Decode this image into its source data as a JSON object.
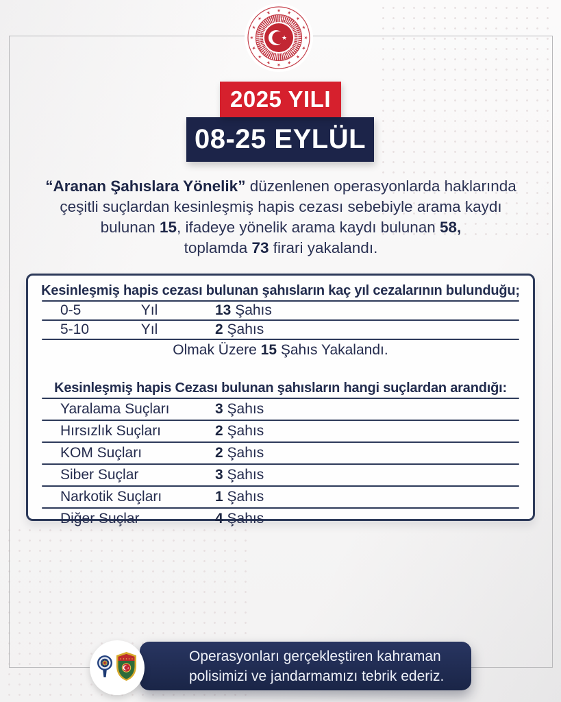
{
  "seal": {
    "title": "TÜRKİYE CUMHURİYETİ BİNGÖL VALİLİĞİ"
  },
  "banners": {
    "year": "2025 YILI",
    "date_range": "08-25 EYLÜL"
  },
  "intro": {
    "segments": [
      {
        "text": "“Aranan Şahıslara Yönelik”",
        "bold": true
      },
      {
        "text": " düzenlenen operasyonlarda haklarında",
        "bold": false
      },
      {
        "br": true
      },
      {
        "text": "çeşitli suçlardan kesinleşmiş hapis cezası sebebiyle arama kaydı",
        "bold": false
      },
      {
        "br": true
      },
      {
        "text": "bulunan ",
        "bold": false
      },
      {
        "text": "15",
        "bold": true
      },
      {
        "text": ", ifadeye yönelik arama kaydı bulunan ",
        "bold": false
      },
      {
        "text": "58,",
        "bold": true
      },
      {
        "br": true
      },
      {
        "text": "toplamda ",
        "bold": false
      },
      {
        "text": "73",
        "bold": true
      },
      {
        "text": " firari yakalandı.",
        "bold": false
      }
    ]
  },
  "sentence_table": {
    "title": "Kesinleşmiş hapis cezası bulunan şahısların kaç yıl cezalarının bulunduğu;",
    "rows": [
      {
        "range": "0-5",
        "unit": "Yıl",
        "count": "13",
        "count_unit": "Şahıs"
      },
      {
        "range": "5-10",
        "unit": "Yıl",
        "count": "2",
        "count_unit": "Şahıs"
      }
    ],
    "summary_segments": [
      {
        "text": "Olmak Üzere ",
        "bold": false
      },
      {
        "text": "15",
        "bold": true
      },
      {
        "text": " Şahıs Yakalandı.",
        "bold": false
      }
    ]
  },
  "crime_table": {
    "title": "Kesinleşmiş hapis Cezası bulunan şahısların hangi suçlardan arandığı:",
    "rows": [
      {
        "label": "Yaralama Suçları",
        "count": "3",
        "count_unit": "Şahıs"
      },
      {
        "label": "Hırsızlık Suçları",
        "count": "2",
        "count_unit": "Şahıs"
      },
      {
        "label": "KOM Suçları",
        "count": "2",
        "count_unit": "Şahıs"
      },
      {
        "label": "Siber Suçlar",
        "count": "3",
        "count_unit": "Şahıs"
      },
      {
        "label": "Narkotik Suçları",
        "count": "1",
        "count_unit": "Şahıs"
      },
      {
        "label": "Diğer Suçlar",
        "count": "4",
        "count_unit": "Şahıs"
      }
    ]
  },
  "footer": {
    "lines": [
      "Operasyonları gerçekleştiren kahraman",
      "polisimizi ve jandarmamızı tebrik ederiz."
    ]
  },
  "colors": {
    "accent_red": "#d6202d",
    "navy": "#1c2449",
    "table_line": "#2d3a5a",
    "footer_navy": "#1f2c55",
    "seal_red": "#c5404b"
  }
}
